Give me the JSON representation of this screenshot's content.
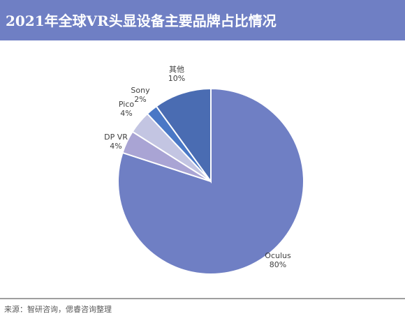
{
  "chart_data": {
    "type": "pie",
    "title": "2021年全球VR头显设备主要品牌占比情况",
    "categories": [
      "Oculus",
      "DP VR",
      "Pico",
      "Sony",
      "其他"
    ],
    "values": [
      80,
      4,
      4,
      2,
      10
    ],
    "value_labels": [
      "80%",
      "4%",
      "4%",
      "2%",
      "10%"
    ],
    "colors": [
      "#6f7fc4",
      "#a9a4d4",
      "#c3c5e2",
      "#4a78c6",
      "#4a6cb2"
    ],
    "source": "来源：智研咨询，偲睿咨询整理"
  }
}
